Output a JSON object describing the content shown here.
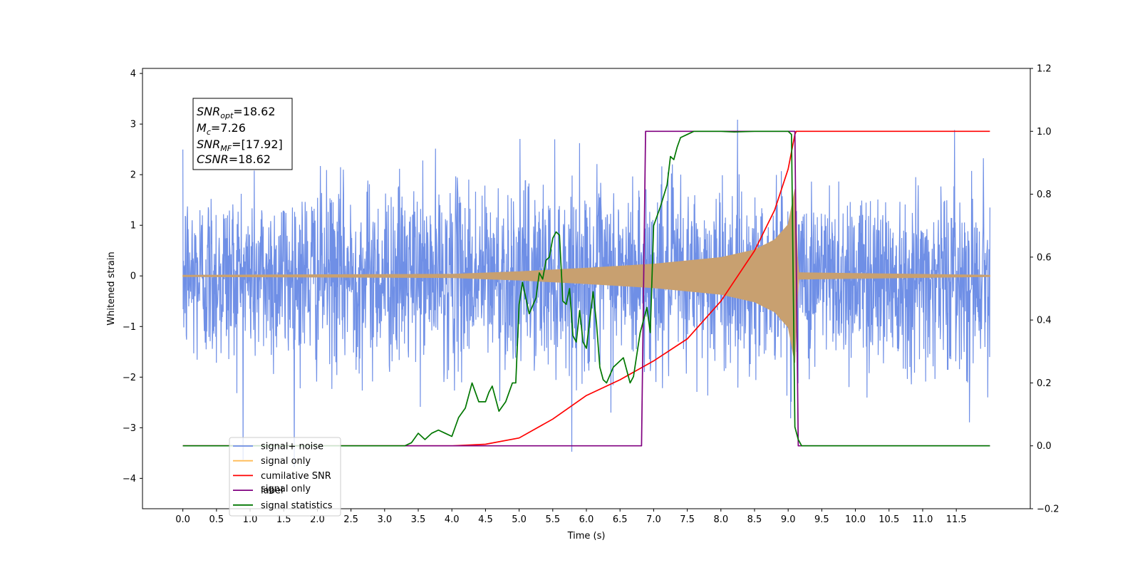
{
  "chart_data": {
    "type": "line",
    "title": "",
    "xlabel": "Time (s)",
    "ylabel": "Whitened strain",
    "xlim": [
      -0.6,
      12.6
    ],
    "ylim": [
      -4.6,
      4.1
    ],
    "y2lim": [
      -0.2,
      1.2
    ],
    "x_ticks": [
      "0.0",
      "0.5",
      "1.0",
      "1.5",
      "2.0",
      "2.5",
      "3.0",
      "3.5",
      "4.0",
      "4.5",
      "5.0",
      "5.5",
      "6.0",
      "6.5",
      "7.0",
      "7.5",
      "8.0",
      "8.5",
      "9.0",
      "9.5",
      "10.0",
      "10.5",
      "11.0",
      "11.5"
    ],
    "y_ticks": [
      "4",
      "3",
      "2",
      "1",
      "0",
      "−1",
      "−2",
      "−3",
      "−4"
    ],
    "y2_ticks": [
      "1.2",
      "1.0",
      "0.8",
      "0.6",
      "0.4",
      "0.2",
      "0.0",
      "−0.2"
    ],
    "annotation": {
      "lines": [
        {
          "var": "SNR",
          "sub": "opt",
          "value": "=18.62"
        },
        {
          "var": "M",
          "sub": "c",
          "value": "=7.26"
        },
        {
          "var": "SNR",
          "sub": "MF",
          "value": "=[17.92]"
        },
        {
          "var": "CSNR",
          "sub": "",
          "value": "=18.62"
        }
      ]
    },
    "legend": {
      "position": "lower-left",
      "entries": [
        {
          "label": "signal+ noise",
          "color": "#6f8fe6"
        },
        {
          "label": "signal only",
          "color": "#ffbb55"
        },
        {
          "label": "cumilative SNR",
          "color": "#ff0000"
        },
        {
          "label": "label",
          "color": "#800080"
        },
        {
          "label": "signal statistics",
          "color": "#007700"
        }
      ],
      "hidden_text": "signal only"
    },
    "series": [
      {
        "name": "signal+ noise",
        "axis": "left",
        "color": "#6f8fe6",
        "style": "dense noise, amplitude about ±2.5 with spikes to about ±3.8, over 0.0 to 12.0 s"
      },
      {
        "name": "signal only",
        "axis": "left",
        "color": "#c8a070",
        "style": "chirp envelope",
        "envelope": {
          "x": [
            0.0,
            4.0,
            5.0,
            6.0,
            7.0,
            8.0,
            8.5,
            8.8,
            9.0,
            9.1,
            9.15,
            12.0
          ],
          "amp": [
            0.0,
            0.02,
            0.07,
            0.14,
            0.22,
            0.35,
            0.5,
            0.7,
            1.0,
            1.7,
            0.05,
            0.0
          ]
        }
      },
      {
        "name": "cumilative SNR",
        "axis": "right",
        "color": "#ff0000",
        "x": [
          0.0,
          4.0,
          4.5,
          5.0,
          5.5,
          6.0,
          6.5,
          7.0,
          7.5,
          8.0,
          8.5,
          8.8,
          9.0,
          9.1,
          9.12,
          12.0
        ],
        "y": [
          0.0,
          0.0,
          0.005,
          0.025,
          0.085,
          0.16,
          0.21,
          0.27,
          0.34,
          0.46,
          0.62,
          0.75,
          0.88,
          0.99,
          1.0,
          1.0
        ]
      },
      {
        "name": "label",
        "axis": "right",
        "color": "#800080",
        "x": [
          0.0,
          6.82,
          6.88,
          9.1,
          9.15,
          12.0
        ],
        "y": [
          0.0,
          0.0,
          1.0,
          1.0,
          0.0,
          0.0
        ]
      },
      {
        "name": "signal statistics",
        "axis": "right",
        "color": "#007700",
        "x": [
          0.0,
          3.3,
          3.4,
          3.5,
          3.6,
          3.7,
          3.8,
          3.9,
          4.0,
          4.05,
          4.1,
          4.2,
          4.3,
          4.4,
          4.5,
          4.55,
          4.6,
          4.7,
          4.8,
          4.9,
          4.95,
          5.0,
          5.05,
          5.15,
          5.25,
          5.3,
          5.35,
          5.4,
          5.45,
          5.5,
          5.55,
          5.6,
          5.65,
          5.7,
          5.75,
          5.8,
          5.85,
          5.9,
          5.95,
          6.0,
          6.1,
          6.15,
          6.2,
          6.25,
          6.3,
          6.4,
          6.5,
          6.55,
          6.6,
          6.65,
          6.7,
          6.8,
          6.9,
          6.95,
          7.0,
          7.05,
          7.1,
          7.2,
          7.25,
          7.3,
          7.35,
          7.4,
          7.5,
          7.6,
          7.8,
          8.0,
          8.2,
          8.5,
          8.8,
          9.0,
          9.05,
          9.1,
          9.15,
          9.2,
          12.0
        ],
        "y": [
          0.0,
          0.0,
          0.01,
          0.04,
          0.02,
          0.04,
          0.05,
          0.04,
          0.03,
          0.06,
          0.09,
          0.12,
          0.2,
          0.14,
          0.14,
          0.17,
          0.19,
          0.11,
          0.14,
          0.2,
          0.2,
          0.45,
          0.52,
          0.42,
          0.47,
          0.55,
          0.53,
          0.59,
          0.6,
          0.66,
          0.68,
          0.67,
          0.46,
          0.45,
          0.5,
          0.35,
          0.33,
          0.43,
          0.33,
          0.31,
          0.49,
          0.39,
          0.25,
          0.21,
          0.2,
          0.25,
          0.27,
          0.28,
          0.24,
          0.2,
          0.22,
          0.36,
          0.44,
          0.36,
          0.7,
          0.73,
          0.76,
          0.83,
          0.92,
          0.91,
          0.95,
          0.98,
          0.99,
          1.0,
          1.0,
          1.0,
          0.998,
          1.0,
          1.0,
          1.0,
          0.99,
          0.06,
          0.02,
          0.0,
          0.0
        ]
      }
    ]
  }
}
